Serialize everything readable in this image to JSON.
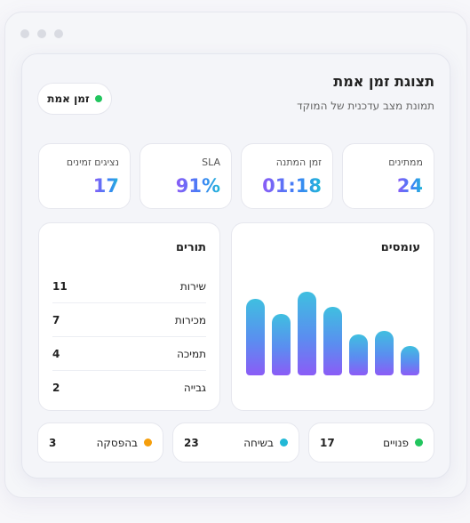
{
  "header": {
    "title": "תצוגת זמן אמת",
    "subtitle": "תמונת מצב עדכנית של המוקד",
    "live_label": "זמן אמת"
  },
  "stats": [
    {
      "label": "ממתינים",
      "value": "24"
    },
    {
      "label": "זמן המתנה",
      "value": "01:18"
    },
    {
      "label": "SLA",
      "value": "91%"
    },
    {
      "label": "נציגים זמינים",
      "value": "17"
    }
  ],
  "load_chart": {
    "title": "עומסים"
  },
  "chart_data": {
    "type": "bar",
    "title": "עומסים",
    "values": [
      7.4,
      5.9,
      8.1,
      6.6,
      3.9,
      4.3,
      2.8
    ],
    "ylim": [
      0,
      9
    ],
    "grid": false
  },
  "queues": {
    "title": "תורים",
    "rows": [
      {
        "name": "שירות",
        "count": "11"
      },
      {
        "name": "מכירות",
        "count": "7"
      },
      {
        "name": "תמיכה",
        "count": "4"
      },
      {
        "name": "גבייה",
        "count": "2"
      }
    ]
  },
  "statuses": [
    {
      "label": "פנויים",
      "count": "17",
      "color": "#22c55e"
    },
    {
      "label": "בשיחה",
      "count": "23",
      "color": "#22b8d6"
    },
    {
      "label": "בהפסקה",
      "count": "3",
      "color": "#f59e0b"
    }
  ]
}
